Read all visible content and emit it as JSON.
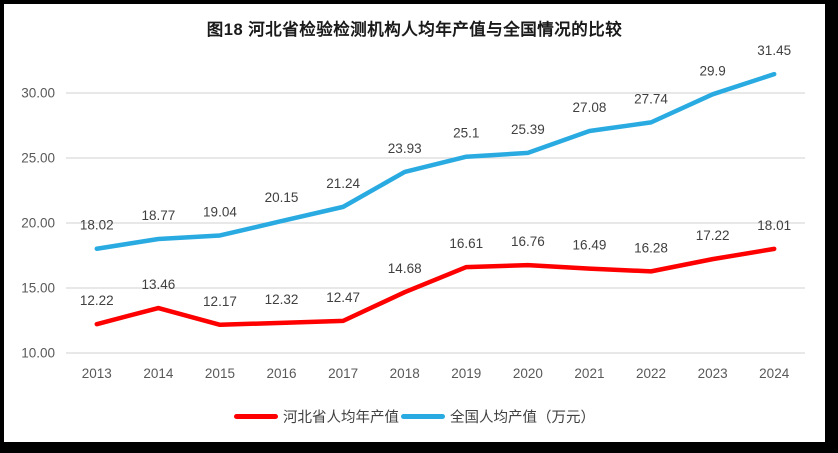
{
  "colors": {
    "background": "#FFFFFF",
    "frame": "#000000",
    "grid": "#D9D9D9",
    "axis-text": "#595959",
    "label-text": "#404040",
    "title-text": "#1A1A1A"
  },
  "chart_data": {
    "type": "line",
    "title": "图18 河北省检验检测机构人均年产值与全国情况的比较",
    "categories": [
      "2013",
      "2014",
      "2015",
      "2016",
      "2017",
      "2018",
      "2019",
      "2020",
      "2021",
      "2022",
      "2023",
      "2024"
    ],
    "series": [
      {
        "id": "hebei",
        "name": "河北省人均年产值",
        "color": "#FF0000",
        "values": [
          12.22,
          13.46,
          12.17,
          12.32,
          12.47,
          14.68,
          16.61,
          16.76,
          16.49,
          16.28,
          17.22,
          18.01
        ]
      },
      {
        "id": "national",
        "name": "全国人均产值（万元）",
        "color": "#29ABE2",
        "values": [
          18.02,
          18.77,
          19.04,
          20.15,
          21.24,
          23.93,
          25.1,
          25.39,
          27.08,
          27.74,
          29.9,
          31.45
        ]
      }
    ],
    "y_ticks": [
      "10.00",
      "15.00",
      "20.00",
      "25.00",
      "30.00"
    ],
    "ylim": [
      10,
      30
    ],
    "xlabel": "",
    "ylabel": "",
    "grid": true,
    "data_labels": true,
    "legend_position": "bottom"
  }
}
